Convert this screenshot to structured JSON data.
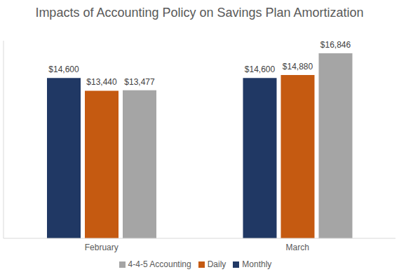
{
  "chart_data": {
    "type": "bar",
    "title": "Impacts of Accounting Policy on Savings Plan Amortization",
    "categories": [
      "February",
      "March"
    ],
    "series": [
      {
        "name": "Monthly",
        "color": "#203864",
        "values": [
          14600,
          14600
        ],
        "value_labels": [
          "$14,600",
          "$14,600"
        ]
      },
      {
        "name": "Daily",
        "color": "#c55a11",
        "values": [
          13440,
          14880
        ],
        "value_labels": [
          "$13,440",
          "$14,880"
        ]
      },
      {
        "name": "4-4-5 Accounting",
        "color": "#a5a5a5",
        "values": [
          13477,
          16846
        ],
        "value_labels": [
          "$13,477",
          "$16,846"
        ]
      }
    ],
    "ylim": [
      0,
      18000
    ],
    "yticks": [],
    "grid": false,
    "legend": "bottom",
    "data_labels": true,
    "tick_labels": "x"
  }
}
